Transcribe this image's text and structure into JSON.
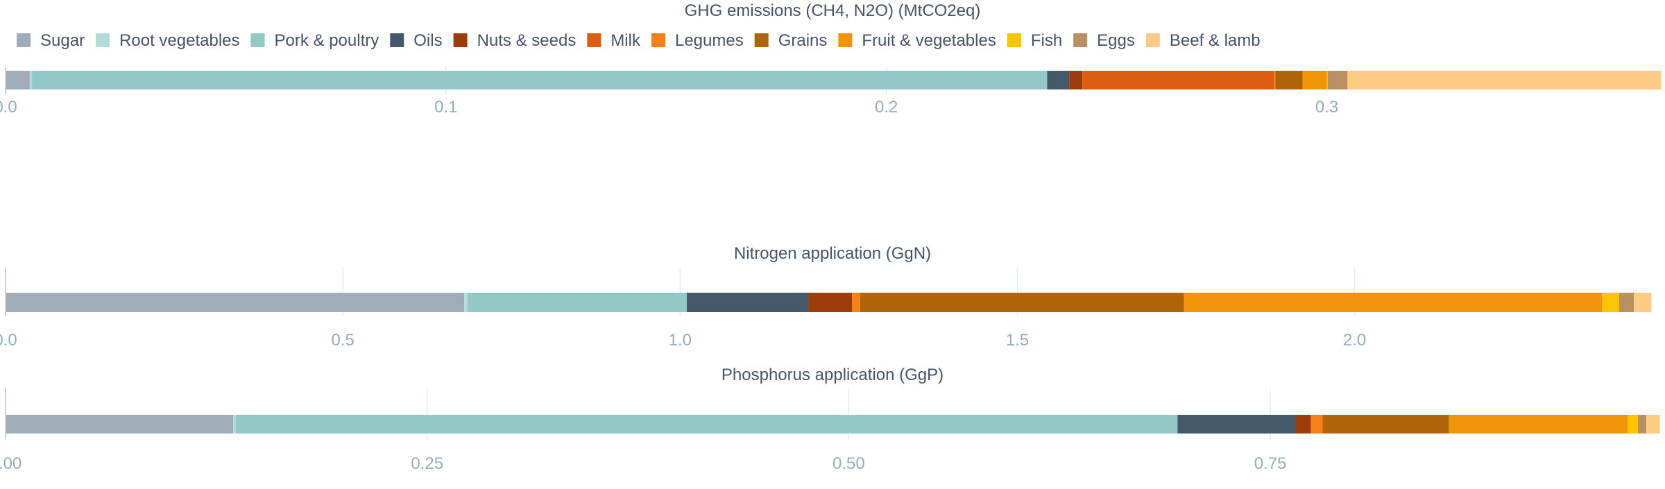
{
  "chart_data": [
    {
      "type": "bar",
      "orientation": "horizontal",
      "stacked": true,
      "title": "GHG emissions (CH4, N2O) (MtCO2eq)",
      "xlim": [
        0,
        0.376
      ],
      "ticks": [
        0,
        0.1,
        0.2,
        0.3
      ],
      "tick_labels": [
        "0.0",
        "0.1",
        "0.2",
        "0.3"
      ],
      "grid": true,
      "series": [
        {
          "name": "Sugar",
          "value": 0.0055
        },
        {
          "name": "Root vegetables",
          "value": 0.0005
        },
        {
          "name": "Pork & poultry",
          "value": 0.2305
        },
        {
          "name": "Oils",
          "value": 0.005
        },
        {
          "name": "Nuts & seeds",
          "value": 0.003
        },
        {
          "name": "Milk",
          "value": 0.0435
        },
        {
          "name": "Legumes",
          "value": 0.0003
        },
        {
          "name": "Grains",
          "value": 0.0062
        },
        {
          "name": "Fruit & vegetables",
          "value": 0.0055
        },
        {
          "name": "Fish",
          "value": 0.0002
        },
        {
          "name": "Eggs",
          "value": 0.0045
        },
        {
          "name": "Beef & lamb",
          "value": 0.0712
        }
      ]
    },
    {
      "type": "bar",
      "orientation": "horizontal",
      "stacked": true,
      "title": "Nitrogen application (GgN)",
      "xlim": [
        0,
        2.455
      ],
      "ticks": [
        0,
        0.5,
        1.0,
        1.5,
        2.0
      ],
      "tick_labels": [
        "0.0",
        "0.5",
        "1.0",
        "1.5",
        "2.0"
      ],
      "grid": true,
      "series": [
        {
          "name": "Sugar",
          "value": 0.68
        },
        {
          "name": "Root vegetables",
          "value": 0.005
        },
        {
          "name": "Pork & poultry",
          "value": 0.325
        },
        {
          "name": "Oils",
          "value": 0.18
        },
        {
          "name": "Nuts & seeds",
          "value": 0.065
        },
        {
          "name": "Milk",
          "value": 0.0
        },
        {
          "name": "Legumes",
          "value": 0.012
        },
        {
          "name": "Grains",
          "value": 0.48
        },
        {
          "name": "Fruit & vegetables",
          "value": 0.62
        },
        {
          "name": "Fish",
          "value": 0.025
        },
        {
          "name": "Eggs",
          "value": 0.022
        },
        {
          "name": "Beef & lamb",
          "value": 0.026
        }
      ]
    },
    {
      "type": "bar",
      "orientation": "horizontal",
      "stacked": true,
      "title": "Phosphorus application (GgP)",
      "xlim": [
        0,
        0.982
      ],
      "ticks": [
        0,
        0.25,
        0.5,
        0.75
      ],
      "tick_labels": [
        "0.00",
        "0.25",
        "0.50",
        "0.75"
      ],
      "grid": true,
      "series": [
        {
          "name": "Sugar",
          "value": 0.135
        },
        {
          "name": "Root vegetables",
          "value": 0.0015
        },
        {
          "name": "Pork & poultry",
          "value": 0.5585
        },
        {
          "name": "Oils",
          "value": 0.07
        },
        {
          "name": "Nuts & seeds",
          "value": 0.009
        },
        {
          "name": "Milk",
          "value": 0.0
        },
        {
          "name": "Legumes",
          "value": 0.007
        },
        {
          "name": "Grains",
          "value": 0.075
        },
        {
          "name": "Fruit & vegetables",
          "value": 0.106
        },
        {
          "name": "Fish",
          "value": 0.006
        },
        {
          "name": "Eggs",
          "value": 0.005
        },
        {
          "name": "Beef & lamb",
          "value": 0.008
        }
      ]
    }
  ],
  "legend": {
    "items": [
      {
        "name": "Sugar",
        "color": "#a0adb9"
      },
      {
        "name": "Root vegetables",
        "color": "#b2dcd8"
      },
      {
        "name": "Pork & poultry",
        "color": "#92c8c6"
      },
      {
        "name": "Oils",
        "color": "#44596a"
      },
      {
        "name": "Nuts & seeds",
        "color": "#9e3d0c"
      },
      {
        "name": "Milk",
        "color": "#dd5e0e"
      },
      {
        "name": "Legumes",
        "color": "#f77f18"
      },
      {
        "name": "Grains",
        "color": "#b06408"
      },
      {
        "name": "Fruit & vegetables",
        "color": "#f29407"
      },
      {
        "name": "Fish",
        "color": "#fcc500"
      },
      {
        "name": "Eggs",
        "color": "#b99160"
      },
      {
        "name": "Beef & lamb",
        "color": "#fecb85"
      }
    ]
  },
  "colors": {
    "title_text": "#44546a",
    "tick_text": "#8fb0b8",
    "grid": "#e6ebee",
    "axis": "#c7d2d8"
  }
}
